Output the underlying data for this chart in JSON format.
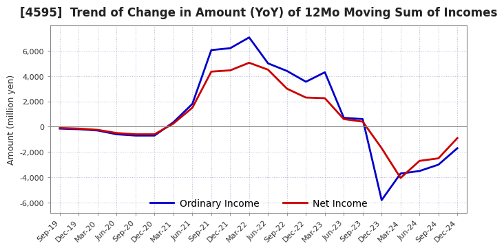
{
  "title": "[4595]  Trend of Change in Amount (YoY) of 12Mo Moving Sum of Incomes",
  "ylabel": "Amount (million yen)",
  "ylim": [
    -6800,
    8000
  ],
  "yticks": [
    -6000,
    -4000,
    -2000,
    0,
    2000,
    4000,
    6000
  ],
  "x_labels": [
    "Sep-19",
    "Dec-19",
    "Mar-20",
    "Jun-20",
    "Sep-20",
    "Dec-20",
    "Mar-21",
    "Jun-21",
    "Sep-21",
    "Dec-21",
    "Mar-22",
    "Jun-22",
    "Sep-22",
    "Dec-22",
    "Mar-23",
    "Jun-23",
    "Sep-23",
    "Dec-23",
    "Mar-24",
    "Jun-24",
    "Sep-24",
    "Dec-24"
  ],
  "ordinary_income": [
    -150,
    -200,
    -300,
    -600,
    -700,
    -700,
    350,
    1800,
    6050,
    6200,
    7050,
    5000,
    4400,
    3550,
    4300,
    700,
    600,
    -5800,
    -3700,
    -3500,
    -3000,
    -1700
  ],
  "net_income": [
    -100,
    -150,
    -250,
    -500,
    -600,
    -600,
    250,
    1500,
    4350,
    4450,
    5050,
    4500,
    3000,
    2300,
    2250,
    600,
    400,
    -1700,
    -4050,
    -2700,
    -2500,
    -900
  ],
  "ordinary_color": "#0000cc",
  "net_color": "#cc0000",
  "background_color": "#ffffff",
  "grid_color": "#aaaacc",
  "legend_labels": [
    "Ordinary Income",
    "Net Income"
  ]
}
